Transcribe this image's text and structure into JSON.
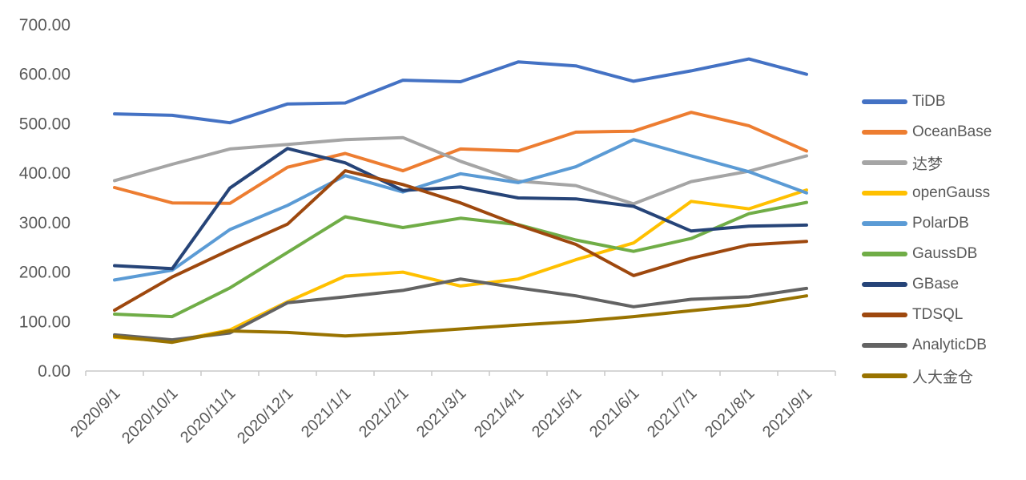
{
  "chart_data": {
    "type": "line",
    "title": "",
    "xlabel": "",
    "ylabel": "",
    "grid": false,
    "legend_position": "right",
    "y_axis": {
      "min": 0,
      "max": 700,
      "step": 100
    },
    "y_tick_labels": [
      "0.00",
      "100.00",
      "200.00",
      "300.00",
      "400.00",
      "500.00",
      "600.00",
      "700.00"
    ],
    "x_labels": [
      "2020/9/1",
      "2020/10/1",
      "2020/11/1",
      "2020/12/1",
      "2021/1/1",
      "2021/2/1",
      "2021/3/1",
      "2021/4/1",
      "2021/5/1",
      "2021/6/1",
      "2021/7/1",
      "2021/8/1",
      "2021/9/1"
    ],
    "series": [
      {
        "name": "TiDB",
        "color": "#4472C4",
        "values": [
          520,
          517,
          502,
          540,
          542,
          588,
          585,
          625,
          617,
          586,
          607,
          631,
          600
        ]
      },
      {
        "name": "OceanBase",
        "color": "#ED7D31",
        "values": [
          371,
          340,
          339,
          412,
          440,
          405,
          449,
          445,
          483,
          485,
          523,
          496,
          445
        ]
      },
      {
        "name": "达梦",
        "color": "#A5A5A5",
        "values": [
          385,
          418,
          449,
          458,
          468,
          472,
          424,
          384,
          375,
          338,
          383,
          404,
          435
        ]
      },
      {
        "name": "openGauss",
        "color": "#FFC000",
        "values": [
          68,
          60,
          83,
          140,
          192,
          200,
          172,
          186,
          225,
          259,
          343,
          328,
          366
        ]
      },
      {
        "name": "PolarDB",
        "color": "#5B9BD5",
        "values": [
          184,
          204,
          286,
          335,
          395,
          362,
          399,
          381,
          413,
          468,
          435,
          403,
          360
        ]
      },
      {
        "name": "GaussDB",
        "color": "#70AD47",
        "values": [
          115,
          110,
          168,
          240,
          312,
          290,
          309,
          296,
          265,
          242,
          268,
          318,
          341
        ]
      },
      {
        "name": "GBase",
        "color": "#264478",
        "values": [
          213,
          207,
          370,
          450,
          421,
          365,
          372,
          350,
          348,
          333,
          283,
          293,
          295
        ]
      },
      {
        "name": "TDSQL",
        "color": "#9E480E",
        "values": [
          123,
          190,
          245,
          297,
          405,
          377,
          340,
          295,
          256,
          193,
          228,
          255,
          262
        ]
      },
      {
        "name": "AnalyticDB",
        "color": "#636363",
        "values": [
          73,
          63,
          77,
          138,
          150,
          163,
          186,
          168,
          152,
          130,
          145,
          150,
          167
        ]
      },
      {
        "name": "人大金仓",
        "color": "#997300",
        "values": [
          70,
          58,
          81,
          78,
          71,
          77,
          85,
          93,
          100,
          110,
          122,
          133,
          152
        ]
      }
    ],
    "style": {
      "axis_color": "#C8C8C8",
      "label_color": "#595959",
      "line_width": 4
    }
  }
}
